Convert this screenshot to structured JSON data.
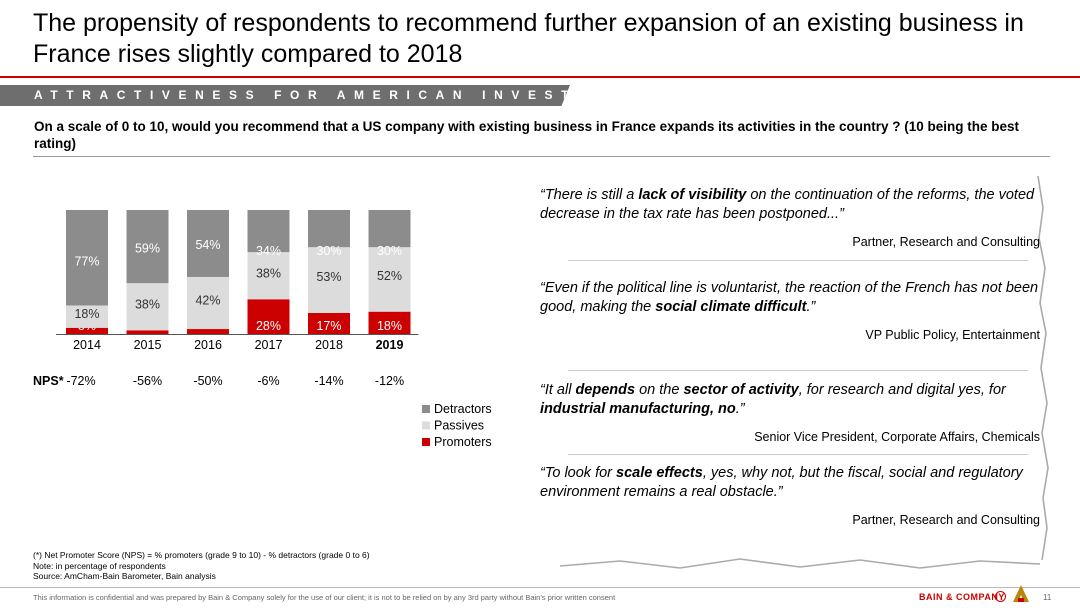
{
  "title": "The propensity of respondents to recommend further expansion of an existing business in France rises slightly compared to 2018",
  "banner": "ATTRACTIVENESS FOR AMERICAN INVESTORS",
  "question": "On a scale of 0 to 10, would you recommend that a US company with existing business in France expands its activities in the country ? (10 being the best rating)",
  "chart_data": {
    "type": "bar",
    "stacked": true,
    "percent_stacked": true,
    "categories": [
      "2014",
      "2015",
      "2016",
      "2017",
      "2018",
      "2019"
    ],
    "highlight_category": "2019",
    "series": [
      {
        "name": "Promoters",
        "color": "#cc0000",
        "values": [
          5,
          3,
          4,
          28,
          17,
          18
        ],
        "labels": [
          "5%",
          "",
          "",
          "28%",
          "17%",
          "18%"
        ]
      },
      {
        "name": "Passives",
        "color": "#dcdcdc",
        "values": [
          18,
          38,
          42,
          38,
          53,
          52
        ],
        "labels": [
          "18%",
          "38%",
          "42%",
          "38%",
          "53%",
          "52%"
        ]
      },
      {
        "name": "Detractors",
        "color": "#8c8c8c",
        "values": [
          77,
          59,
          54,
          34,
          30,
          30
        ],
        "labels": [
          "77%",
          "59%",
          "54%",
          "34%",
          "30%",
          "30%"
        ]
      }
    ],
    "legend_order": [
      "Detractors",
      "Passives",
      "Promoters"
    ],
    "legend_position": "right",
    "nps_label": "NPS*",
    "nps": [
      "-72%",
      "-56%",
      "-50%",
      "-6%",
      "-14%",
      "-12%"
    ]
  },
  "quotes": [
    {
      "pre": "“There is still a ",
      "b1": "lack of visibility",
      "mid": " on the continuation of the reforms, the voted decrease in the tax rate has been postponed...”",
      "b2": "",
      "post": "",
      "author": "Partner, Research and Consulting"
    },
    {
      "pre": "“Even if the political line is voluntarist, the reaction of the French has not been good, making the ",
      "b1": "social climate difficult",
      "mid": ".”",
      "b2": "",
      "post": "",
      "author": "VP Public Policy, Entertainment"
    },
    {
      "pre": "“It all ",
      "b1": "depends",
      "mid": " on the ",
      "b2": "sector of activity",
      "post": ", for research and digital yes, for ",
      "b3": "industrial manufacturing, no",
      "post2": ".”",
      "author": "Senior Vice President, Corporate Affairs, Chemicals"
    },
    {
      "pre": "“To look for ",
      "b1": "scale effects",
      "mid": ", yes, why not, but the fiscal, social and regulatory environment remains a real obstacle.”",
      "b2": "",
      "post": "",
      "author": "Partner, Research and Consulting"
    }
  ],
  "footnotes": [
    "(*) Net Promoter Score (NPS) = % promoters (grade 9 to 10) - % detractors (grade 0 to 6)",
    "Note: in percentage of respondents",
    "Source: AmCham-Bain Barometer, Bain analysis"
  ],
  "disclaimer": "This information is confidential and was prepared by Bain & Company solely for the use of our client; it is not to be relied on by any 3rd party without Bain's prior written consent",
  "brand": "BAIN & COMPANY",
  "page_number": "11"
}
